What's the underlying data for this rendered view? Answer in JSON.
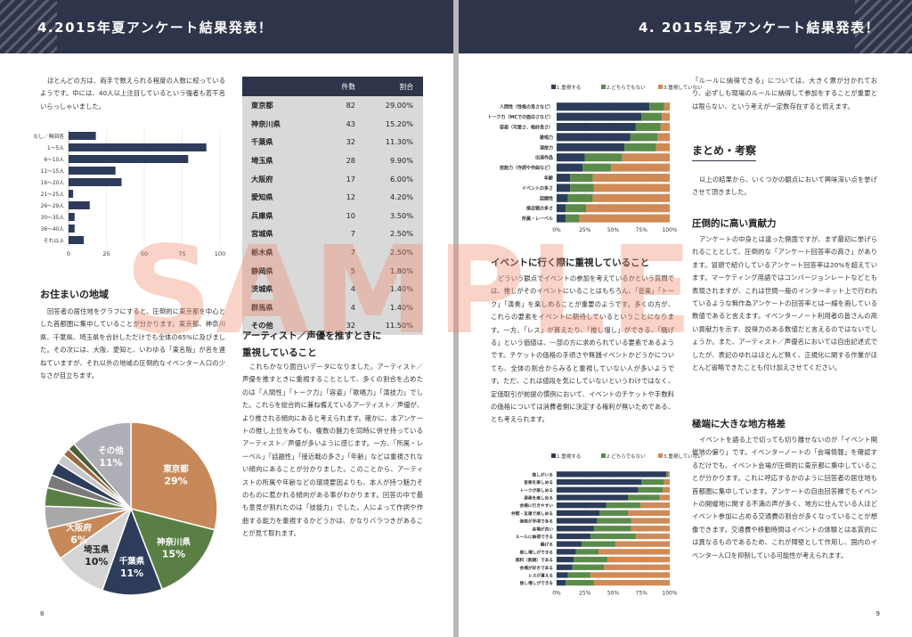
{
  "header": {
    "title_left": "4.2015年夏アンケート結果発表！",
    "title_right": "4. 2015年夏アンケート結果発表！"
  },
  "left": {
    "intro": "ほとんどの方は、両手で数えられる程度の人数に絞っているようです。中には、40人以上注目しているという強者も若干名いらっしゃいました。",
    "sec1_title": "お住まいの地域",
    "sec1_text": "回答者の居住地をグラフにすると、圧倒的に東京都を中心とした首都圏に集中していることが分かります。東京都、神奈川県、千葉県、埼玉県を合計しただけでも全体の65%に及びました。その次には、大阪、愛知と、いわゆる「東名阪」が名を連ねていますが、それ以外の地域の圧倒的なイベンター人口の少なさが目立ちます。",
    "sec2_title_l1": "アーティスト／声優を推すときに",
    "sec2_title_l2": "重視していること",
    "sec2_text": "これもかなり面白いデータになりました。アーティスト／声優を推すときに重視することとして、多くの割合を占めたのは「人間性」「トーク力」「容姿」「歌唱力」「演技力」でした。これらを総合的に兼ね備えているアーティスト／声優が、より推される傾向にあると考えられます。確かに、本アンケートの推し上位をみても、複数の魅力を同時に併せ持っているアーティスト／声優が多いように感じます。一方、「所属・レーベル」「話題性」「接近戦の多さ」「年齢」などは重視されない傾向にあることが分かりました。このことから、アーティストの所属や年齢などの環境要因よりも、本人が持つ魅力そのものに惹かれる傾向がある事がわかります。回答の中で最も意見が割れたのは「技能力」でした。人によって作詞や作曲する能力を重視するかどうかは、かなりバラつきがあることが見て取れます。",
    "page_no": "8",
    "table": {
      "headers": [
        "",
        "件数",
        "割合"
      ],
      "rows": [
        [
          "東京都",
          "82",
          "29.00%"
        ],
        [
          "神奈川県",
          "43",
          "15.20%"
        ],
        [
          "千葉県",
          "32",
          "11.30%"
        ],
        [
          "埼玉県",
          "28",
          "9.90%"
        ],
        [
          "大阪府",
          "17",
          "6.00%"
        ],
        [
          "愛知県",
          "12",
          "4.20%"
        ],
        [
          "兵庫県",
          "10",
          "3.50%"
        ],
        [
          "宮城県",
          "7",
          "2.50%"
        ],
        [
          "栃木県",
          "7",
          "2.50%"
        ],
        [
          "静岡県",
          "5",
          "1.80%"
        ],
        [
          "茨城県",
          "4",
          "1.40%"
        ],
        [
          "群馬県",
          "4",
          "1.40%"
        ],
        [
          "その他",
          "32",
          "11.50%"
        ]
      ]
    }
  },
  "right": {
    "sec1_title": "イベントに行く際に重視していること",
    "sec1_text": "どういう観点でイベントの参加を考えているかという質問では、推しがそのイベントにいることはもちろん、「音楽」「トーク」「演奏」を楽しめることが重要のようです。多くの方が、これらの要素をイベントに期待しているということになります。一方、「レス」が貰えたり、「推し増し」ができる、「騒げる」という価値は、一部の方に求められている要素であるようです。チケットの価格の手頃さや無銭イベントかどうかについても、全体の割合からみると重視していない人が多いようです。ただ、これは値段を気にしていないというわけではなく、定価取引が前提の慣例において、イベントのチケットや手数料の価格については消費者側に決定する権利が無いためである、とも考えられます。",
    "top_text": "「ルールに納得できる」については、大きく票が分かれており、必ずしも現場のルールに納得して参加をすることが重要とは限らない、という考えが一定数存在すると伺えます。",
    "sum_title": "まとめ・考察",
    "sum_text": "以上の結果から、いくつかの観点において興味深い点を挙げさせて頂きました。",
    "h_a": "圧倒的に高い貢献力",
    "t_a": "アンケートの中身とは違った側面ですが、まず最初に挙げられることとして、圧倒的な「アンケート回答率の高さ」があります。冒頭で紹介しているアンケート回答率は20%を超えています。マーケティング用語ではコンバージョンレートなどとも表現されますが、これは世間一般のインターネット上で行われているような無作為アンケートの回答率とは一線を画している数値であると言えます。イベンターノート利用者の皆さんの高い貢献力を示す、説得力のある数値だと言えるのではないでしょうか。また、アーティスト／声優名においては自由記述式でしたが、表記のゆれはほとんど無く、正規化に関する作業がほとんど省略できたことも付け加えさせてください。",
    "h_b": "極端に大きな地方格差",
    "t_b": "イベントを語る上で切っても切り離せないのが「イベント開催地の偏り」です。イベンターノートの「会場情報」を確認するだけでも、イベント会場が圧倒的に東京都に集中していることが分かります。これに呼応するかのように回答者の居住地も首都圏に集中しています。アンケートの自由回答欄でもイベントの開催地に関する不満の声が多く、地方に住んでいる人ほどイベント参加に占める交通費の割合が多くなっていることが想像できます。交通費や移動時間はイベントの体験とは本質的には異なるものであるため、これが障壁として作用し、国内のイベンター人口を抑制している可能性が考えられます。",
    "page_no": "9"
  },
  "chart_data": [
    {
      "type": "bar",
      "orientation": "horizontal",
      "categories": [
        "なし／無回答",
        "1〜5人",
        "6〜10人",
        "11〜15人",
        "16〜20人",
        "21〜25人",
        "26〜29人",
        "30〜35人",
        "36〜40人",
        "それ以上"
      ],
      "values": [
        18,
        91,
        79,
        31,
        35,
        3,
        14,
        4,
        4,
        10
      ],
      "xlim": [
        0,
        100
      ],
      "xticks": [
        0,
        25,
        50,
        75,
        100
      ]
    },
    {
      "type": "pie",
      "labels": [
        "東京都",
        "神奈川県",
        "千葉県",
        "埼玉県",
        "大阪府",
        "愛知県",
        "兵庫県",
        "宮城県",
        "栃木県",
        "静岡県",
        "茨城県",
        "群馬県",
        "その他"
      ],
      "values": [
        29.0,
        15.2,
        11.3,
        9.9,
        6.0,
        4.2,
        3.5,
        2.5,
        2.5,
        1.8,
        1.4,
        1.4,
        11.5
      ],
      "shown_labels": [
        "東京都",
        "神奈川県",
        "千葉県",
        "埼玉県",
        "大阪府",
        "その他"
      ],
      "shown_pcts": [
        "29%",
        "15%",
        "11%",
        "10%",
        "6%",
        "11%"
      ],
      "colors": [
        "#c8895a",
        "#5a7f45",
        "#2e3c5c",
        "#d4d4d4",
        "#c8895a",
        "#a8a8a8",
        "#5a7f45",
        "#7a7a7a",
        "#2e3c5c",
        "#c8c8c8",
        "#9a6a44",
        "#4a5f38",
        "#aeaeb6"
      ]
    },
    {
      "type": "bar",
      "stacked": true,
      "orientation": "horizontal",
      "legend": [
        "1.重視する",
        "2.どちらでもない",
        "3.重視していない"
      ],
      "colors": [
        "#2e3c5c",
        "#5a8b4a",
        "#d08a55"
      ],
      "categories": [
        "人間性（性格の良さなど）",
        "トーク力（MCでの面白さなど）",
        "容姿（可愛さ、格好良さ）",
        "歌唱力",
        "演技力",
        "出演作品",
        "技能力（作詞や作曲など）",
        "年齢",
        "イベントの多さ",
        "話題性",
        "接近戦の多さ",
        "所属・レーベル"
      ],
      "series": [
        {
          "name": "1.重視する",
          "values": [
            82,
            75,
            70,
            65,
            60,
            25,
            23,
            12,
            12,
            10,
            8,
            8
          ]
        },
        {
          "name": "2.どちらでもない",
          "values": [
            13,
            18,
            22,
            24,
            28,
            33,
            25,
            20,
            21,
            22,
            18,
            12
          ]
        },
        {
          "name": "3.重視していない",
          "values": [
            5,
            7,
            8,
            11,
            12,
            42,
            52,
            68,
            67,
            68,
            74,
            80
          ]
        }
      ],
      "xticks": [
        "0%",
        "25%",
        "50%",
        "75%",
        "100%"
      ]
    },
    {
      "type": "bar",
      "stacked": true,
      "orientation": "horizontal",
      "legend": [
        "1.重視する",
        "2.どちらでもない",
        "3.重視していない"
      ],
      "colors": [
        "#2e3c5c",
        "#5a8b4a",
        "#d08a55"
      ],
      "categories": [
        "推しがいる",
        "音楽を楽しめる",
        "トークが楽しめる",
        "演奏を楽しめる",
        "会場に行きやすい",
        "仲間・友達で楽しめる",
        "価格が手頃である",
        "会場が良い",
        "ルールに納得できる",
        "騒げる",
        "推し増しができる",
        "無料（無銭）である",
        "会場が好きである",
        "レスが貰える",
        "推し増しができる"
      ],
      "series": [
        {
          "name": "1.重視する",
          "values": [
            97,
            75,
            72,
            63,
            44,
            38,
            36,
            33,
            30,
            22,
            17,
            15,
            14,
            10,
            8
          ]
        },
        {
          "name": "2.どちらでもない",
          "values": [
            2,
            20,
            22,
            28,
            30,
            25,
            30,
            33,
            40,
            30,
            20,
            30,
            28,
            20,
            25
          ]
        },
        {
          "name": "3.重視していない",
          "values": [
            1,
            5,
            6,
            9,
            26,
            37,
            34,
            34,
            30,
            48,
            63,
            55,
            58,
            70,
            67
          ]
        }
      ],
      "xticks": [
        "0%",
        "25%",
        "50%",
        "75%",
        "100%"
      ]
    }
  ]
}
